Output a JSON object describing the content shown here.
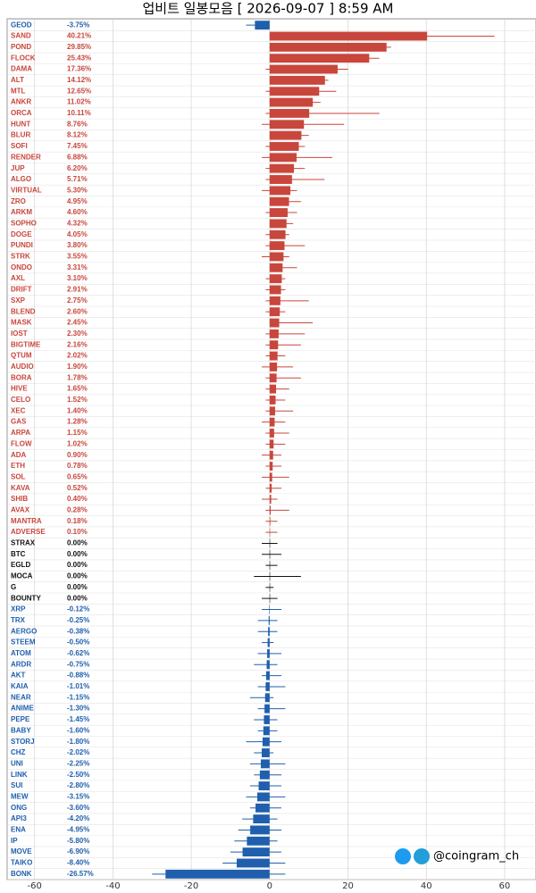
{
  "chart_data": {
    "type": "bar",
    "title": "업비트 일봉모음 [ 2026-09-07 ]  8:59 AM",
    "categories": [
      "GEOD",
      "SAND",
      "POND",
      "FLOCK",
      "DAMA",
      "ALT",
      "MTL",
      "ANKR",
      "ORCA",
      "HUNT",
      "BLUR",
      "SOFI",
      "RENDER",
      "JUP",
      "ALGO",
      "VIRTUAL",
      "ZRO",
      "ARKM",
      "SOPHO",
      "DOGE",
      "PUNDI",
      "STRK",
      "ONDO",
      "AXL",
      "DRIFT",
      "SXP",
      "BLEND",
      "MASK",
      "IOST",
      "BIGTIME",
      "QTUM",
      "AUDIO",
      "BORA",
      "HIVE",
      "CELO",
      "XEC",
      "GAS",
      "ARPA",
      "FLOW",
      "ADA",
      "ETH",
      "SOL",
      "KAVA",
      "SHIB",
      "AVAX",
      "MANTRA",
      "ADVERSE",
      "STRAX",
      "BTC",
      "EGLD",
      "MOCA",
      "G",
      "BOUNTY",
      "XRP",
      "TRX",
      "AERGO",
      "STEEM",
      "ATOM",
      "ARDR",
      "AKT",
      "KAIA",
      "NEAR",
      "ANIME",
      "PEPE",
      "BABY",
      "STORJ",
      "CHZ",
      "UNI",
      "LINK",
      "SUI",
      "MEW",
      "ONG",
      "API3",
      "ENA",
      "IP",
      "MOVE",
      "TAIKO",
      "BONK"
    ],
    "values": [
      -3.75,
      40.21,
      29.85,
      25.43,
      17.36,
      14.12,
      12.65,
      11.02,
      10.11,
      8.76,
      8.12,
      7.45,
      6.88,
      6.2,
      5.71,
      5.3,
      4.95,
      4.6,
      4.32,
      4.05,
      3.8,
      3.55,
      3.31,
      3.1,
      2.91,
      2.75,
      2.6,
      2.45,
      2.3,
      2.16,
      2.02,
      1.9,
      1.78,
      1.65,
      1.52,
      1.4,
      1.28,
      1.15,
      1.02,
      0.9,
      0.78,
      0.65,
      0.52,
      0.4,
      0.28,
      0.18,
      0.1,
      0,
      0,
      0,
      0,
      0,
      0,
      -0.12,
      -0.25,
      -0.38,
      -0.5,
      -0.62,
      -0.75,
      -0.88,
      -1.01,
      -1.15,
      -1.3,
      -1.45,
      -1.6,
      -1.8,
      -2.02,
      -2.25,
      -2.5,
      -2.8,
      -3.15,
      -3.6,
      -4.2,
      -4.95,
      -5.8,
      -6.9,
      -8.4,
      -26.57
    ],
    "value_labels": [
      "-3.75%",
      "40.21%",
      "29.85%",
      "25.43%",
      "17.36%",
      "14.12%",
      "12.65%",
      "11.02%",
      "10.11%",
      "8.76%",
      "8.12%",
      "7.45%",
      "6.88%",
      "6.20%",
      "5.71%",
      "5.30%",
      "4.95%",
      "4.60%",
      "4.32%",
      "4.05%",
      "3.80%",
      "3.55%",
      "3.31%",
      "3.10%",
      "2.91%",
      "2.75%",
      "2.60%",
      "2.45%",
      "2.30%",
      "2.16%",
      "2.02%",
      "1.90%",
      "1.78%",
      "1.65%",
      "1.52%",
      "1.40%",
      "1.28%",
      "1.15%",
      "1.02%",
      "0.90%",
      "0.78%",
      "0.65%",
      "0.52%",
      "0.40%",
      "0.28%",
      "0.18%",
      "0.10%",
      "0.00%",
      "0.00%",
      "0.00%",
      "0.00%",
      "0.00%",
      "0.00%",
      "-0.12%",
      "-0.25%",
      "-0.38%",
      "-0.50%",
      "-0.62%",
      "-0.75%",
      "-0.88%",
      "-1.01%",
      "-1.15%",
      "-1.30%",
      "-1.45%",
      "-1.60%",
      "-1.80%",
      "-2.02%",
      "-2.25%",
      "-2.50%",
      "-2.80%",
      "-3.15%",
      "-3.60%",
      "-4.20%",
      "-4.95%",
      "-5.80%",
      "-6.90%",
      "-8.40%",
      "-26.57%"
    ],
    "low": [
      -6,
      0,
      0,
      0,
      -1,
      0,
      -1,
      0,
      -1,
      -2,
      0,
      -1,
      -2,
      -1,
      -1,
      -2,
      0,
      -1,
      0,
      -1,
      -1,
      -2,
      0,
      -1,
      -1,
      -1,
      -1,
      0,
      -1,
      -1,
      -1,
      -2,
      -1,
      -1,
      -1,
      -1,
      -2,
      -1,
      -1,
      -2,
      -1,
      -2,
      -1,
      -2,
      -1,
      -1,
      -1,
      -2,
      -2,
      -1,
      -4,
      -1,
      -2,
      -2,
      -3,
      -3,
      -2,
      -3,
      -4,
      -2,
      -3,
      -5,
      -3,
      -4,
      -3,
      -6,
      -4,
      -5,
      -4,
      -5,
      -6,
      -5,
      -7,
      -8,
      -9,
      -10,
      -12,
      -30
    ],
    "high": [
      0,
      57.4,
      31,
      28,
      20,
      15,
      17,
      13,
      28,
      19,
      10,
      9,
      16,
      9,
      14,
      7,
      8,
      7,
      6,
      5,
      9,
      5,
      7,
      4,
      4,
      10,
      4,
      11,
      9,
      8,
      4,
      6,
      8,
      5,
      4,
      6,
      4,
      5,
      4,
      3,
      3,
      5,
      3,
      2,
      5,
      2,
      2,
      2,
      3,
      2,
      8,
      1,
      2,
      3,
      2,
      2,
      1,
      3,
      2,
      3,
      4,
      1,
      4,
      2,
      2,
      3,
      1,
      4,
      3,
      3,
      4,
      3,
      2,
      3,
      2,
      3,
      4,
      4
    ],
    "up_color": "#c8463c",
    "down_color": "#1f5fad",
    "flat_color": "#111111",
    "xlim": [
      -67,
      68
    ],
    "xticks": [
      -60,
      -40,
      -20,
      0,
      20,
      40,
      60
    ],
    "grid": true
  },
  "watermark": "@coingram_ch"
}
